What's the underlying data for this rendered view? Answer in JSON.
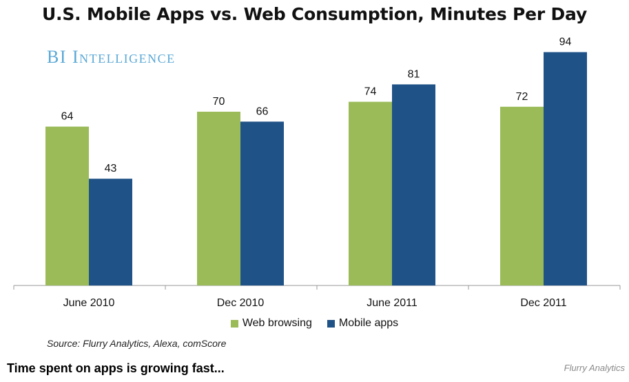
{
  "chart_data": {
    "type": "bar",
    "title": "U.S. Mobile Apps vs. Web Consumption, Minutes Per Day",
    "categories": [
      "June 2010",
      "Dec 2010",
      "June 2011",
      "Dec 2011"
    ],
    "series": [
      {
        "name": "Web browsing",
        "values": [
          64,
          70,
          74,
          72
        ],
        "color": "#9bbb59"
      },
      {
        "name": "Mobile apps",
        "values": [
          43,
          66,
          81,
          94
        ],
        "color": "#1f5287"
      }
    ],
    "ylim": [
      0,
      100
    ],
    "grid": false,
    "legend_position": "bottom"
  },
  "brand": {
    "logo_text": "BI Intelligence"
  },
  "source": "Source: Flurry Analytics, Alexa, comScore",
  "caption": "Time spent on apps is growing fast...",
  "credit": "Flurry Analytics"
}
